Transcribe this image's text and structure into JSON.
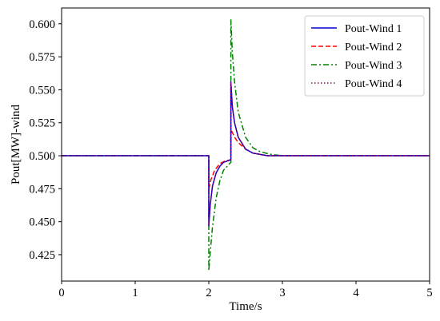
{
  "chart_data": {
    "type": "line",
    "title": "",
    "xlabel": "Time/s",
    "ylabel": "Pout[MW]-wind",
    "xlim": [
      0,
      5
    ],
    "ylim": [
      0.405,
      0.612
    ],
    "xticks": [
      0,
      1,
      2,
      3,
      4,
      5
    ],
    "yticks": [
      0.425,
      0.45,
      0.475,
      0.5,
      0.525,
      0.55,
      0.575,
      0.6
    ],
    "xtick_labels": [
      "0",
      "1",
      "2",
      "3",
      "4",
      "5"
    ],
    "ytick_labels": [
      "0.425",
      "0.450",
      "0.475",
      "0.500",
      "0.525",
      "0.550",
      "0.575",
      "0.600"
    ],
    "grid": false,
    "legend_position": "top-right",
    "series": [
      {
        "name": "Pout-Wind 1",
        "color": "#0000cc",
        "dash": "solid",
        "points": [
          [
            0,
            0.5
          ],
          [
            2.0,
            0.5
          ],
          [
            2.0,
            0.447
          ],
          [
            2.02,
            0.463
          ],
          [
            2.05,
            0.477
          ],
          [
            2.1,
            0.487
          ],
          [
            2.15,
            0.492
          ],
          [
            2.2,
            0.495
          ],
          [
            2.3,
            0.497
          ],
          [
            2.3,
            0.556
          ],
          [
            2.32,
            0.537
          ],
          [
            2.35,
            0.525
          ],
          [
            2.4,
            0.514
          ],
          [
            2.5,
            0.505
          ],
          [
            2.6,
            0.502
          ],
          [
            2.8,
            0.5
          ],
          [
            5.0,
            0.5
          ]
        ]
      },
      {
        "name": "Pout-Wind 2",
        "color": "#ff0000",
        "dash": "dashed",
        "points": [
          [
            0,
            0.5
          ],
          [
            2.0,
            0.5
          ],
          [
            2.0,
            0.475
          ],
          [
            2.03,
            0.482
          ],
          [
            2.08,
            0.489
          ],
          [
            2.15,
            0.494
          ],
          [
            2.22,
            0.496
          ],
          [
            2.3,
            0.497
          ],
          [
            2.3,
            0.52
          ],
          [
            2.35,
            0.514
          ],
          [
            2.4,
            0.51
          ],
          [
            2.5,
            0.505
          ],
          [
            2.6,
            0.502
          ],
          [
            2.8,
            0.5
          ],
          [
            5.0,
            0.5
          ]
        ]
      },
      {
        "name": "Pout-Wind 3",
        "color": "#008000",
        "dash": "dashdot",
        "points": [
          [
            0,
            0.5
          ],
          [
            2.0,
            0.5
          ],
          [
            2.0,
            0.413
          ],
          [
            2.02,
            0.427
          ],
          [
            2.05,
            0.446
          ],
          [
            2.1,
            0.468
          ],
          [
            2.15,
            0.481
          ],
          [
            2.2,
            0.489
          ],
          [
            2.3,
            0.495
          ],
          [
            2.3,
            0.603
          ],
          [
            2.32,
            0.578
          ],
          [
            2.35,
            0.556
          ],
          [
            2.4,
            0.533
          ],
          [
            2.5,
            0.514
          ],
          [
            2.6,
            0.506
          ],
          [
            2.7,
            0.503
          ],
          [
            2.85,
            0.501
          ],
          [
            3.0,
            0.5
          ],
          [
            5.0,
            0.5
          ]
        ]
      },
      {
        "name": "Pout-Wind 4",
        "color": "#990066",
        "dash": "dotted",
        "points": [
          [
            0,
            0.5
          ],
          [
            2.0,
            0.5
          ],
          [
            2.0,
            0.447
          ],
          [
            2.02,
            0.463
          ],
          [
            2.05,
            0.477
          ],
          [
            2.1,
            0.487
          ],
          [
            2.15,
            0.492
          ],
          [
            2.2,
            0.495
          ],
          [
            2.3,
            0.497
          ],
          [
            2.3,
            0.556
          ],
          [
            2.32,
            0.537
          ],
          [
            2.35,
            0.525
          ],
          [
            2.4,
            0.514
          ],
          [
            2.5,
            0.505
          ],
          [
            2.6,
            0.502
          ],
          [
            2.8,
            0.5
          ],
          [
            5.0,
            0.5
          ]
        ]
      }
    ]
  }
}
